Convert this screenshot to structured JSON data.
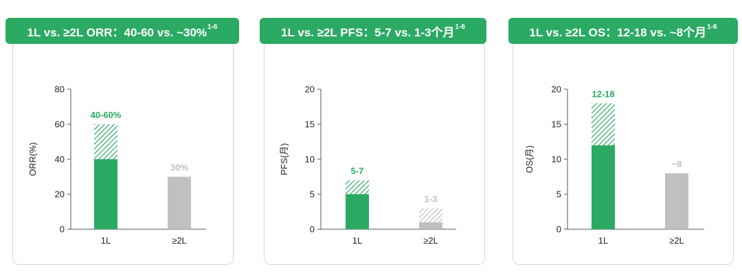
{
  "colors": {
    "green": "#2baa63",
    "gray": "#c0c0c0",
    "axis": "#555555",
    "banner": "#2baa63"
  },
  "chart_data": [
    {
      "type": "bar",
      "title": {
        "prefix": "1L vs. ≥2L ORR：40-60 vs. ~30%",
        "sup": "1-6"
      },
      "ylabel": "ORR(%)",
      "ylim": [
        0,
        80
      ],
      "yticks": [
        0,
        20,
        40,
        60,
        80
      ],
      "categories": [
        "1L",
        "≥2L"
      ],
      "bars": [
        {
          "category": "1L",
          "low": 40,
          "high": 60,
          "label": "40-60%",
          "color": "green"
        },
        {
          "category": "≥2L",
          "low": 30,
          "high": 30,
          "label": "30%",
          "color": "gray"
        }
      ]
    },
    {
      "type": "bar",
      "title": {
        "prefix": "1L vs. ≥2L PFS：5-7 vs. 1-3个月",
        "sup": "1-6"
      },
      "ylabel": "PFS(月)",
      "ylim": [
        0,
        20
      ],
      "yticks": [
        0,
        5,
        10,
        15,
        20
      ],
      "categories": [
        "1L",
        "≥2L"
      ],
      "bars": [
        {
          "category": "1L",
          "low": 5,
          "high": 7,
          "label": "5-7",
          "color": "green"
        },
        {
          "category": "≥2L",
          "low": 1,
          "high": 3,
          "label": "1-3",
          "color": "gray"
        }
      ]
    },
    {
      "type": "bar",
      "title": {
        "prefix": "1L vs. ≥2L OS：12-18 vs. ~8个月",
        "sup": "1-6"
      },
      "ylabel": "OS(月)",
      "ylim": [
        0,
        20
      ],
      "yticks": [
        0,
        5,
        10,
        15,
        20
      ],
      "categories": [
        "1L",
        "≥2L"
      ],
      "bars": [
        {
          "category": "1L",
          "low": 12,
          "high": 18,
          "label": "12-18",
          "color": "green"
        },
        {
          "category": "≥2L",
          "low": 8,
          "high": 8,
          "label": "~8",
          "color": "gray"
        }
      ]
    }
  ]
}
